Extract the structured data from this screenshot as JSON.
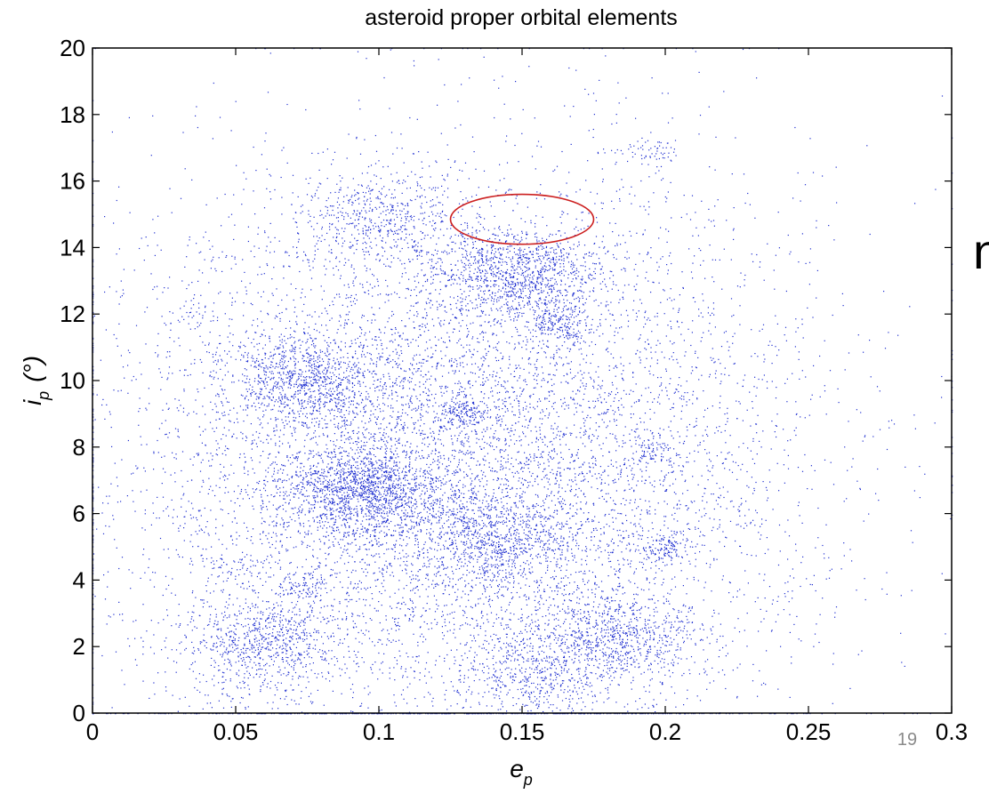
{
  "slide": {
    "edge_fragment": "n",
    "page_number": "19"
  },
  "chart_data": {
    "type": "scatter",
    "title": "asteroid proper orbital elements",
    "xlabel": "e",
    "xlabel_sub": "p",
    "ylabel": "i",
    "ylabel_sub": "p",
    "ylabel_unit": "(°)",
    "xlim": [
      0,
      0.3
    ],
    "ylim": [
      0,
      20
    ],
    "x_ticks": [
      0,
      0.05,
      0.1,
      0.15,
      0.2,
      0.25,
      0.3
    ],
    "x_tick_labels": [
      "0",
      "0.05",
      "0.1",
      "0.15",
      "0.2",
      "0.25",
      "0.3"
    ],
    "y_ticks": [
      0,
      2,
      4,
      6,
      8,
      10,
      12,
      14,
      16,
      18,
      20
    ],
    "y_tick_labels": [
      "0",
      "2",
      "4",
      "6",
      "8",
      "10",
      "12",
      "14",
      "16",
      "18",
      "20"
    ],
    "grid": false,
    "marker_color": "#1f2fd0",
    "series": [
      {
        "clusters": [
          {
            "e": 0.095,
            "i": 6.7,
            "n": 1400
          },
          {
            "e": 0.075,
            "i": 10.0,
            "n": 900
          },
          {
            "e": 0.148,
            "i": 13.2,
            "n": 1000
          },
          {
            "e": 0.06,
            "i": 2.1,
            "n": 700
          },
          {
            "e": 0.185,
            "i": 2.3,
            "n": 700
          },
          {
            "e": 0.155,
            "i": 1.4,
            "n": 500
          },
          {
            "e": 0.14,
            "i": 5.3,
            "n": 700
          },
          {
            "e": 0.1,
            "i": 14.9,
            "n": 450
          },
          {
            "e": 0.13,
            "i": 9.1,
            "n": 150
          },
          {
            "e": 0.163,
            "i": 11.7,
            "n": 150
          },
          {
            "e": 0.195,
            "i": 7.9,
            "n": 80
          },
          {
            "e": 0.035,
            "i": 12.0,
            "n": 40
          },
          {
            "e": 0.048,
            "i": 4.4,
            "n": 40
          },
          {
            "e": 0.047,
            "i": 0.7,
            "n": 30
          },
          {
            "e": 0.195,
            "i": 16.9,
            "n": 60
          },
          {
            "e": 0.072,
            "i": 3.8,
            "n": 80
          },
          {
            "e": 0.2,
            "i": 5.0,
            "n": 120
          }
        ],
        "background_points": 9000
      }
    ],
    "annotation": {
      "shape": "ellipse",
      "color": "#cc1f1f",
      "center": {
        "e": 0.15,
        "i": 14.85
      },
      "half_width_e": 0.025,
      "half_height_i": 0.75
    }
  }
}
